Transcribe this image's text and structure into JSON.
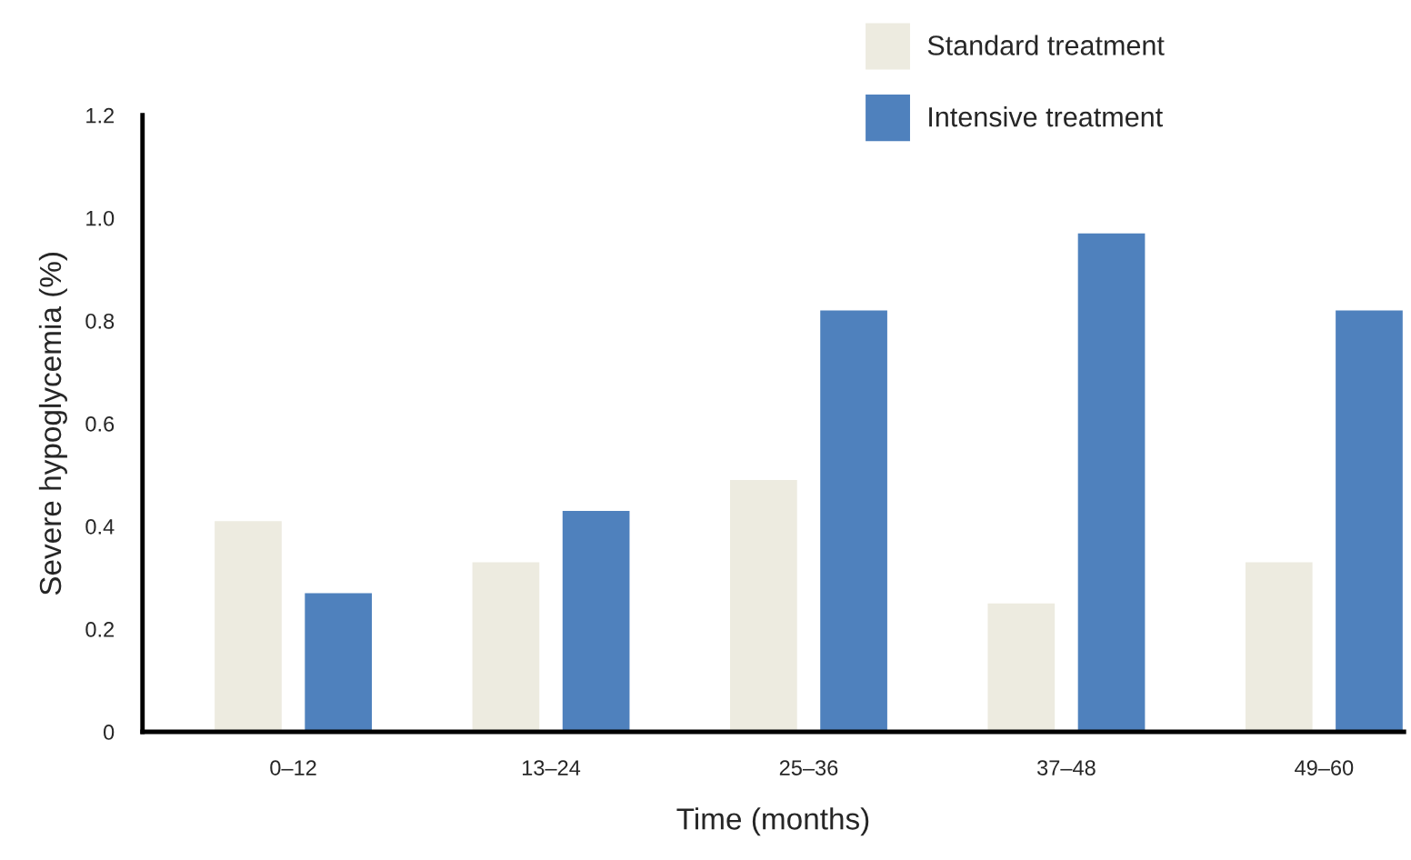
{
  "chart_data": {
    "type": "bar",
    "xlabel": "Time (months)",
    "ylabel": "Severe hypoglycemia (%)",
    "categories": [
      "0–12",
      "13–24",
      "25–36",
      "37–48",
      "49–60"
    ],
    "series": [
      {
        "name": "Standard treatment",
        "color": "#edebe0",
        "values": [
          0.41,
          0.33,
          0.49,
          0.25,
          0.33
        ]
      },
      {
        "name": "Intensive treatment",
        "color": "#4f81bd",
        "values": [
          0.27,
          0.43,
          0.82,
          0.97,
          0.82
        ]
      }
    ],
    "ylim": [
      0,
      1.2
    ],
    "yticks": [
      {
        "value": 0,
        "label": "0"
      },
      {
        "value": 0.2,
        "label": "0.2"
      },
      {
        "value": 0.4,
        "label": "0.4"
      },
      {
        "value": 0.6,
        "label": "0.6"
      },
      {
        "value": 0.8,
        "label": "0.8"
      },
      {
        "value": 1.0,
        "label": "1.0"
      },
      {
        "value": 1.2,
        "label": "1.2"
      }
    ],
    "grid": false,
    "legend": "top right"
  }
}
